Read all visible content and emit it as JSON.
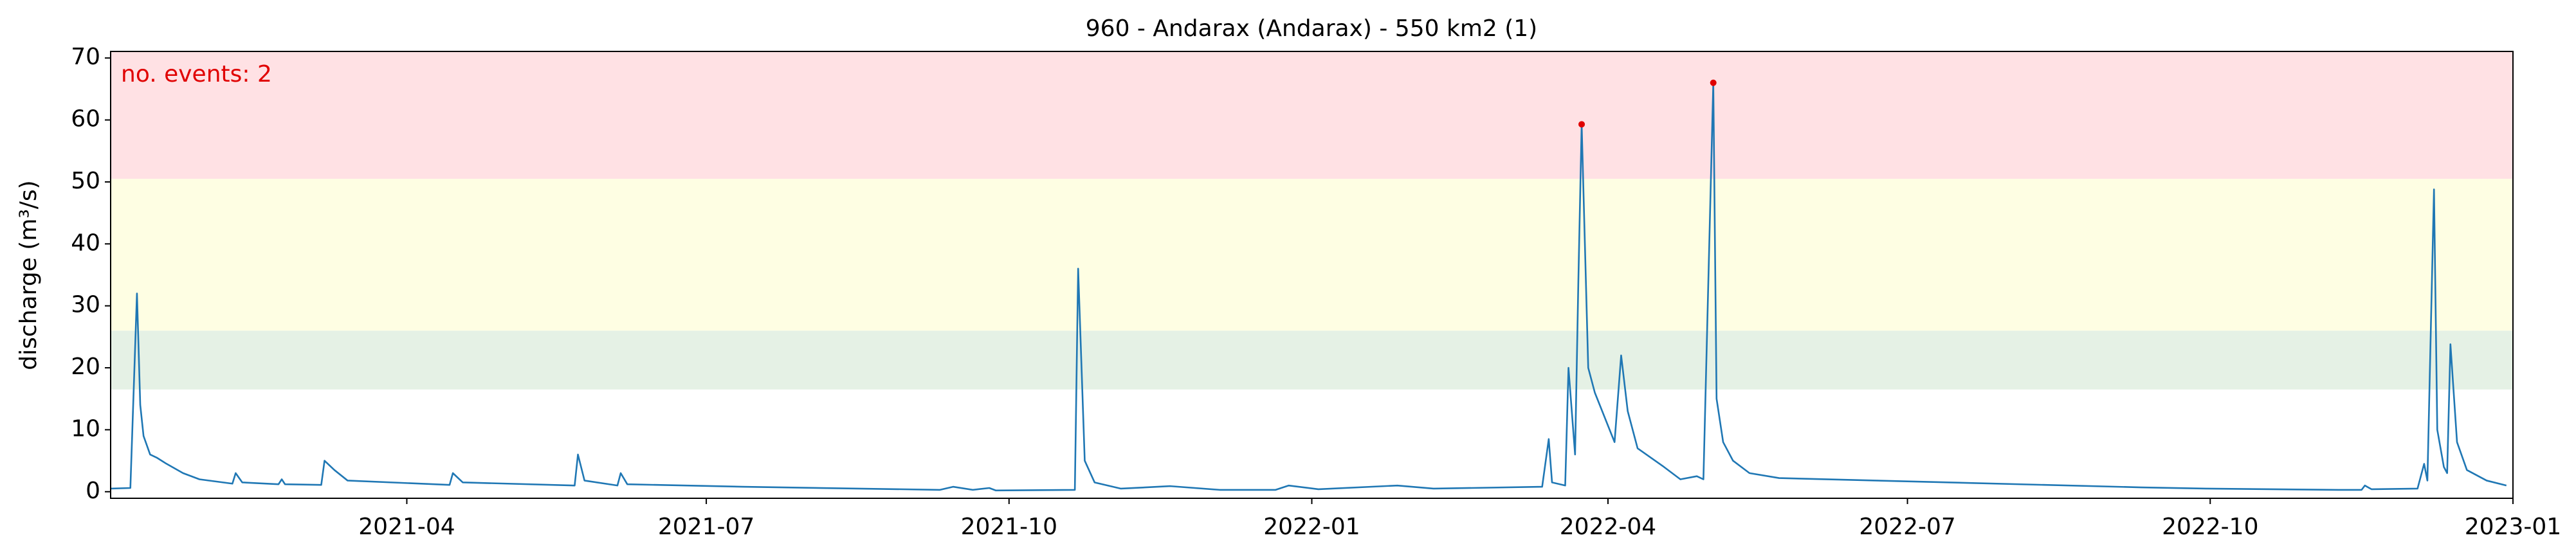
{
  "chart_data": {
    "type": "line",
    "title": "960 - Andarax (Andarax) - 550 km2 (1)",
    "ylabel": "discharge (m³/s)",
    "annotation": {
      "text": "no. events: 2",
      "color": "#e00000"
    },
    "xlim": [
      "2021-01-01",
      "2023-01-01"
    ],
    "xticks": [
      {
        "value": "2021-04-01",
        "label": "2021-04"
      },
      {
        "value": "2021-07-01",
        "label": "2021-07"
      },
      {
        "value": "2021-10-01",
        "label": "2021-10"
      },
      {
        "value": "2022-01-01",
        "label": "2022-01"
      },
      {
        "value": "2022-04-01",
        "label": "2022-04"
      },
      {
        "value": "2022-07-01",
        "label": "2022-07"
      },
      {
        "value": "2022-10-01",
        "label": "2022-10"
      },
      {
        "value": "2023-01-01",
        "label": "2023-01"
      }
    ],
    "ylim": [
      -1.06,
      71.06
    ],
    "yticks": [
      0,
      10,
      20,
      30,
      40,
      50,
      60,
      70
    ],
    "bands": [
      {
        "from": 16.5,
        "to": 26,
        "color": "#e5f1e5"
      },
      {
        "from": 26,
        "to": 50.5,
        "color": "#fefee3"
      },
      {
        "from": 50.5,
        "to": 71.06,
        "color": "#ffe1e4"
      }
    ],
    "x": [
      "2021-01-01",
      "2021-01-07",
      "2021-01-09",
      "2021-01-10",
      "2021-01-11",
      "2021-01-13",
      "2021-01-15",
      "2021-01-18",
      "2021-01-23",
      "2021-01-28",
      "2021-02-07",
      "2021-02-08",
      "2021-02-10",
      "2021-02-21",
      "2021-02-22",
      "2021-02-23",
      "2021-03-06",
      "2021-03-07",
      "2021-03-10",
      "2021-03-14",
      "2021-04-14",
      "2021-04-15",
      "2021-04-18",
      "2021-05-22",
      "2021-05-23",
      "2021-05-25",
      "2021-06-04",
      "2021-06-05",
      "2021-06-07",
      "2021-07-12",
      "2021-09-10",
      "2021-09-14",
      "2021-09-20",
      "2021-09-25",
      "2021-09-27",
      "2021-10-21",
      "2021-10-22",
      "2021-10-24",
      "2021-10-27",
      "2021-11-04",
      "2021-11-19",
      "2021-12-04",
      "2021-12-21",
      "2021-12-25",
      "2022-01-03",
      "2022-01-27",
      "2022-02-07",
      "2022-03-12",
      "2022-03-14",
      "2022-03-15",
      "2022-03-19",
      "2022-03-20",
      "2022-03-22",
      "2022-03-23",
      "2022-03-24",
      "2022-03-26",
      "2022-03-28",
      "2022-04-03",
      "2022-04-05",
      "2022-04-07",
      "2022-04-10",
      "2022-04-18",
      "2022-04-23",
      "2022-04-28",
      "2022-04-30",
      "2022-05-03",
      "2022-05-04",
      "2022-05-06",
      "2022-05-09",
      "2022-05-14",
      "2022-05-23",
      "2022-09-10",
      "2022-09-30",
      "2022-11-09",
      "2022-11-16",
      "2022-11-17",
      "2022-11-19",
      "2022-12-03",
      "2022-12-05",
      "2022-12-06",
      "2022-12-08",
      "2022-12-09",
      "2022-12-11",
      "2022-12-12",
      "2022-12-13",
      "2022-12-15",
      "2022-12-18",
      "2022-12-24",
      "2022-12-30"
    ],
    "series": [
      {
        "name": "discharge",
        "color": "#1f77b4",
        "values": [
          0.5,
          0.6,
          32,
          14,
          9,
          6,
          5.5,
          4.5,
          3,
          2,
          1.3,
          3,
          1.5,
          1.2,
          2,
          1.2,
          1.1,
          5,
          3.5,
          1.8,
          1.1,
          3,
          1.5,
          1.0,
          6,
          1.8,
          1.0,
          3,
          1.2,
          0.8,
          0.3,
          0.8,
          0.3,
          0.6,
          0.2,
          0.3,
          36,
          5,
          1.5,
          0.5,
          0.9,
          0.3,
          0.3,
          1,
          0.4,
          1,
          0.5,
          0.8,
          8.5,
          1.5,
          1,
          20,
          6,
          34,
          59.3,
          20,
          16,
          8,
          22,
          13,
          7,
          4,
          2,
          2.5,
          2,
          66,
          15,
          8,
          5,
          3,
          2.2,
          0.7,
          0.5,
          0.3,
          0.3,
          1.0,
          0.4,
          0.5,
          4.5,
          1.8,
          48.8,
          10,
          4,
          3,
          23.8,
          8,
          3.5,
          1.8,
          1
        ]
      }
    ],
    "events": {
      "x": [
        "2022-03-24",
        "2022-05-03"
      ],
      "values": [
        59.3,
        66
      ],
      "color": "#e00000"
    }
  }
}
